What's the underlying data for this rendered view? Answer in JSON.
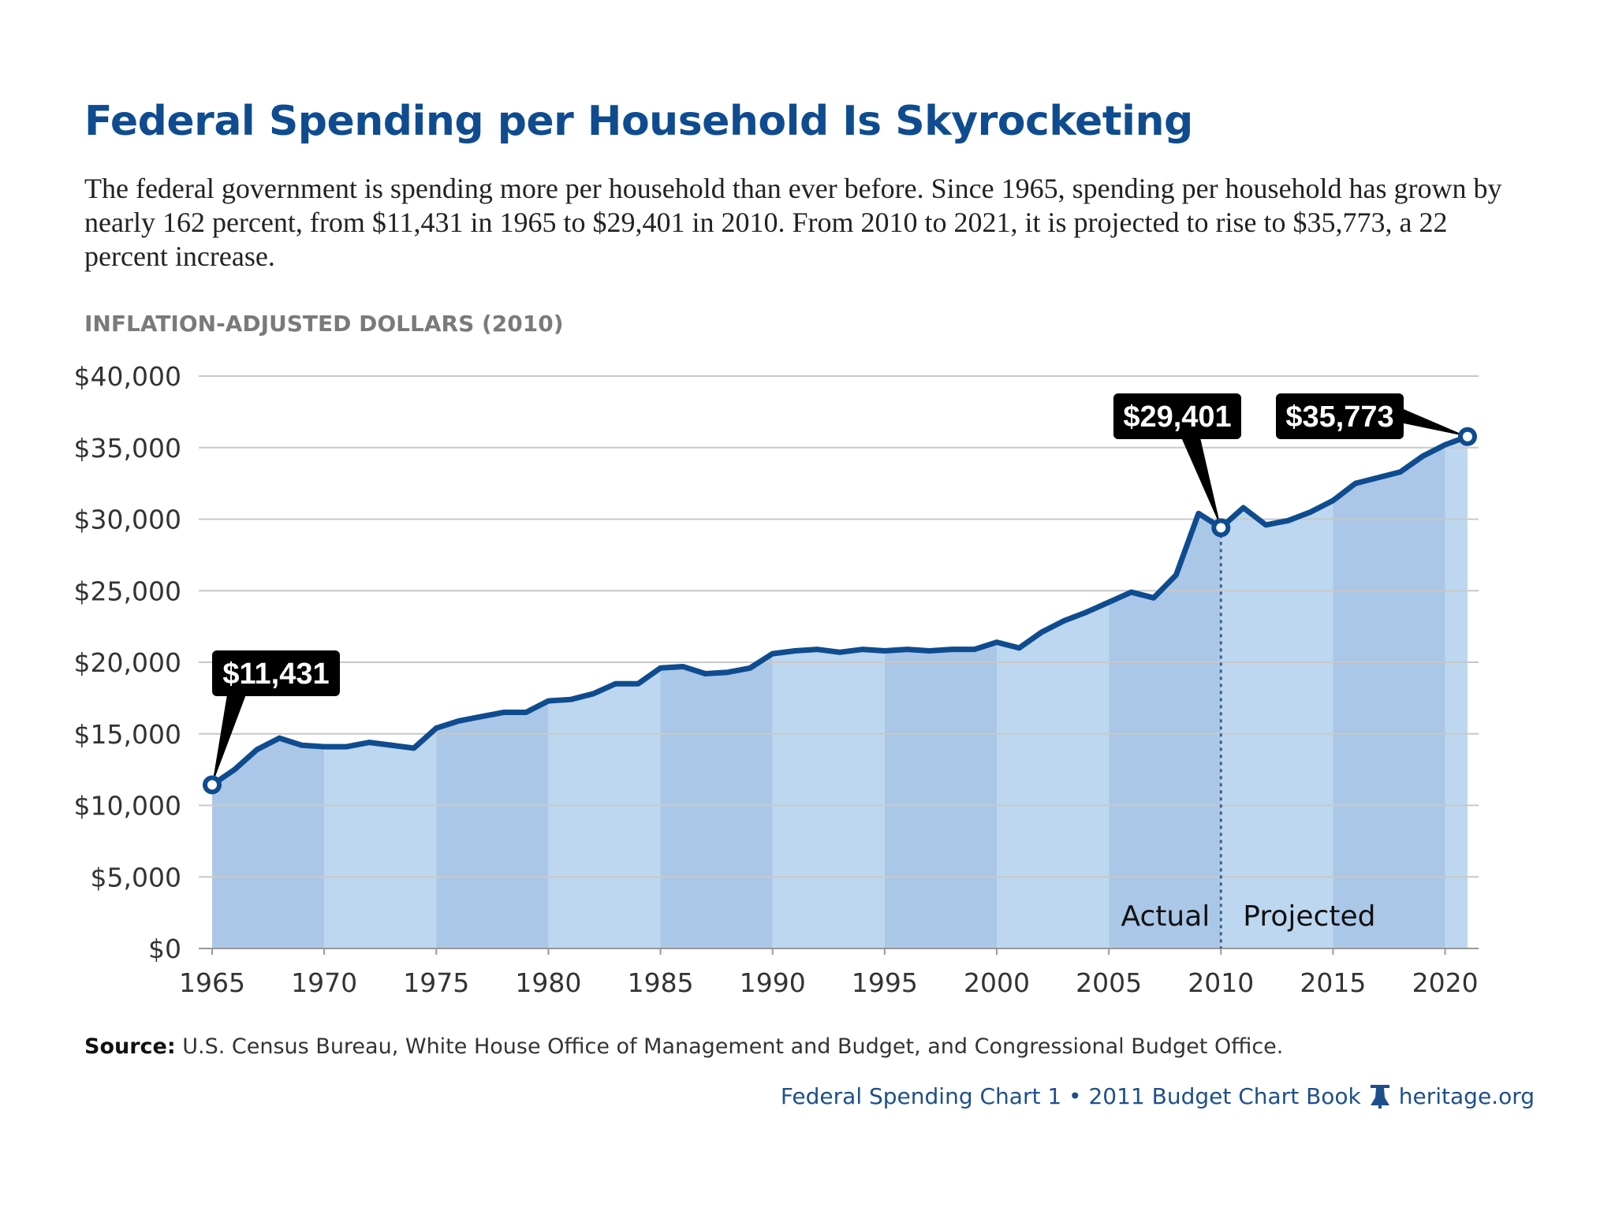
{
  "title": "Federal Spending per Household Is Skyrocketing",
  "subtitle": "The federal government is spending more per household than ever before. Since 1965, spending per household has grown by nearly 162 percent, from $11,431 in 1965 to $29,401 in 2010. From 2010 to 2021, it is projected to rise to $35,773, a 22 percent increase.",
  "source_label": "Source:",
  "source_text": " U.S. Census Bureau, White House Office of Management and Budget, and Congressional Budget Office.",
  "footer": {
    "text": "Federal Spending Chart 1 • 2011 Budget Chart Book",
    "icon": "liberty-bell-icon",
    "site": "heritage.org"
  },
  "colors": {
    "line": "#0f4c8f",
    "band_dark": "#aac7e7",
    "band_light": "#bdd7f1",
    "callout_bg": "#000000",
    "title": "#0f4c8f"
  },
  "chart_data": {
    "type": "area",
    "ylabel": "INFLATION-ADJUSTED DOLLARS (2010)",
    "ylim": [
      0,
      40000
    ],
    "xlim": [
      1965,
      2021
    ],
    "grid": true,
    "y_ticks": [
      "$0",
      "$5,000",
      "$10,000",
      "$15,000",
      "$20,000",
      "$25,000",
      "$30,000",
      "$35,000",
      "$40,000"
    ],
    "y_tick_values": [
      0,
      5000,
      10000,
      15000,
      20000,
      25000,
      30000,
      35000,
      40000
    ],
    "x_ticks": [
      "1965",
      "1970",
      "1975",
      "1980",
      "1985",
      "1990",
      "1995",
      "2000",
      "2005",
      "2010",
      "2015",
      "2020"
    ],
    "x": [
      1965,
      1966,
      1967,
      1968,
      1969,
      1970,
      1971,
      1972,
      1973,
      1974,
      1975,
      1976,
      1977,
      1978,
      1979,
      1980,
      1981,
      1982,
      1983,
      1984,
      1985,
      1986,
      1987,
      1988,
      1989,
      1990,
      1991,
      1992,
      1993,
      1994,
      1995,
      1996,
      1997,
      1998,
      1999,
      2000,
      2001,
      2002,
      2003,
      2004,
      2005,
      2006,
      2007,
      2008,
      2009,
      2010,
      2011,
      2012,
      2013,
      2014,
      2015,
      2016,
      2017,
      2018,
      2019,
      2020,
      2021
    ],
    "values": [
      11431,
      12500,
      13900,
      14700,
      14200,
      14100,
      14100,
      14400,
      14200,
      14000,
      15400,
      15900,
      16200,
      16500,
      16500,
      17300,
      17400,
      17800,
      18500,
      18500,
      19600,
      19700,
      19200,
      19300,
      19600,
      20600,
      20800,
      20900,
      20700,
      20900,
      20800,
      20900,
      20800,
      20900,
      20900,
      21400,
      21000,
      22100,
      22900,
      23500,
      24200,
      24900,
      24500,
      26100,
      30400,
      29401,
      30800,
      29600,
      29900,
      30500,
      31300,
      32500,
      32900,
      33300,
      34400,
      35200,
      35773
    ],
    "divider_year": 2010,
    "regions": [
      "Actual",
      "Projected"
    ],
    "callouts": [
      {
        "year": 1965,
        "label": "$11,431"
      },
      {
        "year": 2010,
        "label": "$29,401"
      },
      {
        "year": 2021,
        "label": "$35,773"
      }
    ]
  }
}
